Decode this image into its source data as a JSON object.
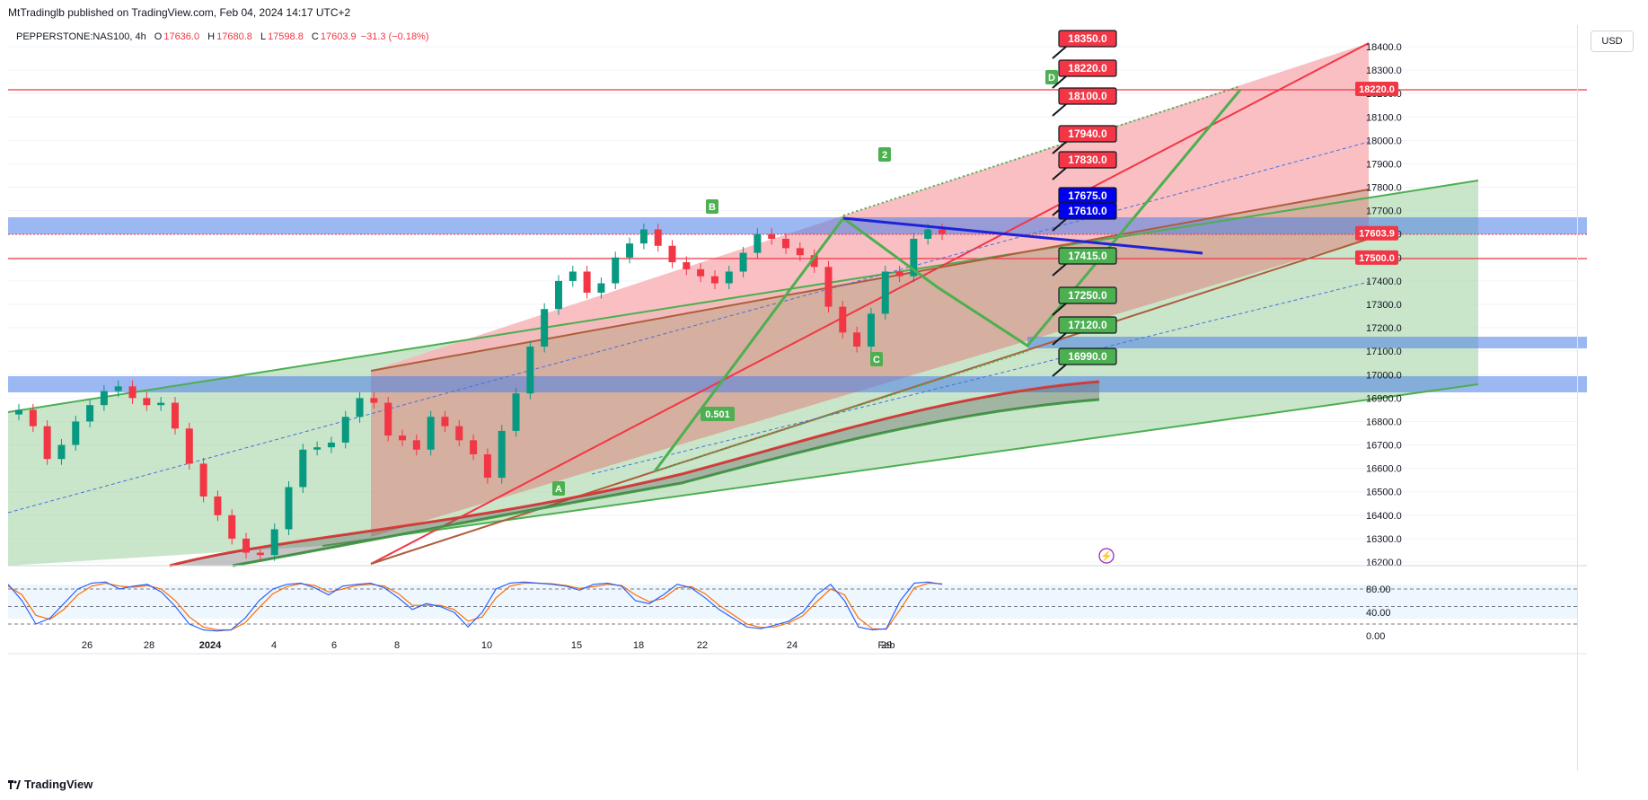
{
  "publisher_line": "MtTradinglb published on TradingView.com, Feb 04, 2024 14:17 UTC+2",
  "legend": {
    "symbol": "PEPPERSTONE:NAS100, 4h",
    "open_label": "O",
    "open": "17636.0",
    "high_label": "H",
    "high": "17680.8",
    "low_label": "L",
    "low": "17598.8",
    "close_label": "C",
    "close": "17603.9",
    "change": "−31.3 (−0.18%)"
  },
  "currency": "USD",
  "footer_brand": "TradingView",
  "colors": {
    "up": "#089981",
    "down": "#f23645",
    "green_line": "#4caf50",
    "red_line": "#f23645",
    "blue_line": "#1e22d8",
    "blue_zone": "#4a7de8",
    "green_fill": "#a5d6a7",
    "red_fill": "#f8b4b8"
  },
  "chart_data": [
    {
      "type": "line",
      "title": "",
      "ylabel": "",
      "ylim": [
        16180,
        18500
      ],
      "y_ticks": [
        "16200.0",
        "16300.0",
        "16400.0",
        "16500.0",
        "16600.0",
        "16700.0",
        "16800.0",
        "16900.0",
        "17000.0",
        "17100.0",
        "17200.0",
        "17300.0",
        "17400.0",
        "17500.0",
        "17600.0",
        "17700.0",
        "17800.0",
        "17900.0",
        "18000.0",
        "18100.0",
        "18200.0",
        "18300.0",
        "18400.0"
      ],
      "x_ticks": [
        "26",
        "28",
        "2024",
        "4",
        "6",
        "8",
        "10",
        "15",
        "18",
        "22",
        "24",
        "29",
        "Feb"
      ],
      "price_labels": [
        {
          "text": "18220.0",
          "value": 18220,
          "color": "#f23645"
        },
        {
          "text": "17603.9",
          "value": 17603.9,
          "color": "#f23645"
        },
        {
          "text": "17500.0",
          "value": 17500,
          "color": "#f23645"
        }
      ],
      "targets": [
        {
          "text": "18350.0",
          "value": 18350,
          "color": "#f23645"
        },
        {
          "text": "18220.0",
          "value": 18220,
          "color": "#f23645"
        },
        {
          "text": "18100.0",
          "value": 18100,
          "color": "#f23645"
        },
        {
          "text": "17940.0",
          "value": 17940,
          "color": "#f23645"
        },
        {
          "text": "17830.0",
          "value": 17830,
          "color": "#f23645"
        },
        {
          "text": "17675.0",
          "value": 17675,
          "color": "#0000ee"
        },
        {
          "text": "17610.0",
          "value": 17610,
          "color": "#0000ee"
        },
        {
          "text": "17415.0",
          "value": 17415,
          "color": "#4caf50"
        },
        {
          "text": "17250.0",
          "value": 17250,
          "color": "#4caf50"
        },
        {
          "text": "17120.0",
          "value": 17120,
          "color": "#4caf50"
        },
        {
          "text": "16990.0",
          "value": 16990,
          "color": "#4caf50"
        }
      ],
      "pattern_points": [
        {
          "label": "A",
          "price": 16580
        },
        {
          "label": "B",
          "price": 17670
        },
        {
          "label": "C",
          "price": 17100
        },
        {
          "label": "2",
          "price": 17940
        },
        {
          "label": "D",
          "price": 18220
        }
      ],
      "fib_label": "0.501",
      "close_price_series": [
        16850,
        16780,
        16640,
        16700,
        16800,
        16870,
        16930,
        16950,
        16900,
        16870,
        16880,
        16770,
        16620,
        16480,
        16400,
        16300,
        16240,
        16230,
        16340,
        16520,
        16680,
        16690,
        16710,
        16820,
        16900,
        16880,
        16740,
        16720,
        16680,
        16820,
        16780,
        16720,
        16660,
        16560,
        16760,
        16920,
        17120,
        17280,
        17400,
        17440,
        17350,
        17390,
        17500,
        17560,
        17620,
        17550,
        17480,
        17450,
        17420,
        17390,
        17440,
        17520,
        17600,
        17580,
        17540,
        17510,
        17460,
        17290,
        17180,
        17120,
        17260,
        17440,
        17420,
        17580,
        17620,
        17600
      ],
      "stochastic": {
        "ylim": [
          0,
          100
        ],
        "levels": [
          80,
          50,
          20
        ],
        "y_ticks": [
          "80.00",
          "40.00",
          "0.00"
        ],
        "k": [
          88,
          60,
          20,
          30,
          55,
          80,
          90,
          92,
          80,
          85,
          88,
          75,
          50,
          20,
          10,
          8,
          10,
          30,
          60,
          80,
          88,
          90,
          82,
          70,
          85,
          88,
          90,
          82,
          65,
          45,
          55,
          50,
          40,
          15,
          40,
          80,
          90,
          92,
          90,
          88,
          85,
          78,
          88,
          90,
          85,
          60,
          55,
          70,
          88,
          82,
          65,
          45,
          30,
          15,
          12,
          18,
          25,
          40,
          70,
          88,
          60,
          15,
          10,
          12,
          60,
          90,
          92,
          88
        ],
        "d": [
          85,
          70,
          35,
          28,
          45,
          70,
          85,
          90,
          85,
          83,
          86,
          80,
          60,
          32,
          15,
          10,
          10,
          22,
          48,
          72,
          84,
          89,
          86,
          75,
          80,
          86,
          88,
          85,
          72,
          52,
          52,
          52,
          45,
          25,
          32,
          65,
          85,
          90,
          90,
          89,
          86,
          81,
          84,
          88,
          86,
          70,
          58,
          64,
          82,
          84,
          72,
          52,
          36,
          20,
          14,
          15,
          22,
          34,
          58,
          80,
          70,
          30,
          12,
          11,
          45,
          82,
          90,
          89
        ]
      }
    }
  ]
}
